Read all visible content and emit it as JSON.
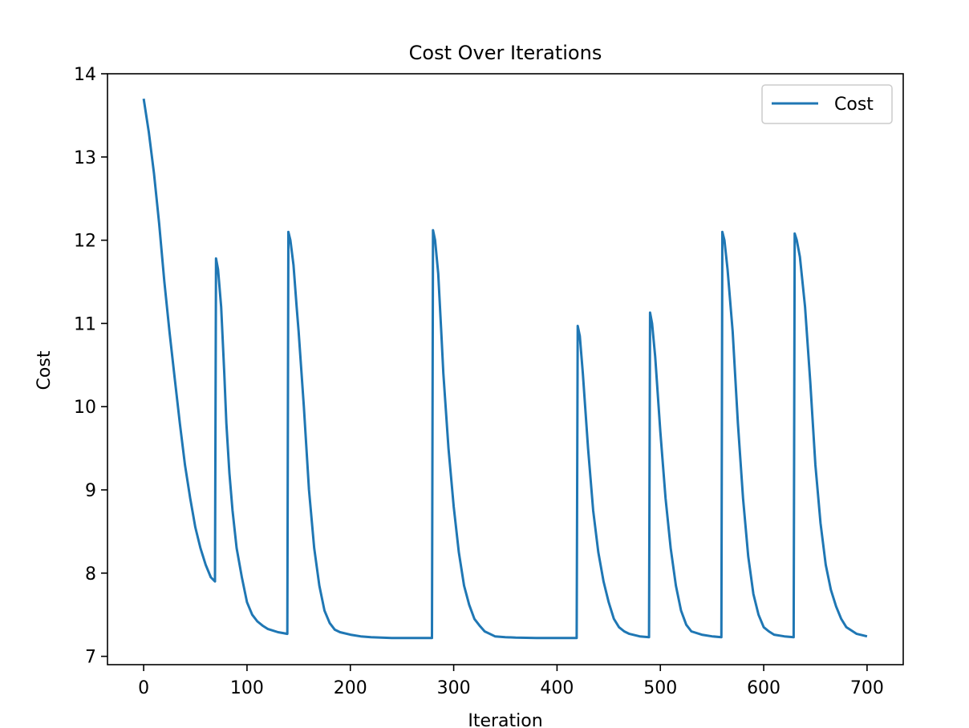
{
  "chart_data": {
    "type": "line",
    "title": "Cost Over Iterations",
    "xlabel": "Iteration",
    "ylabel": "Cost",
    "xlim": [
      -35,
      735
    ],
    "ylim": [
      6.9,
      14.0
    ],
    "x_ticks": [
      0,
      100,
      200,
      300,
      400,
      500,
      600,
      700
    ],
    "y_ticks": [
      7,
      8,
      9,
      10,
      11,
      12,
      13,
      14
    ],
    "grid": false,
    "legend": {
      "position": "upper-right",
      "entries": [
        "Cost"
      ]
    },
    "series": [
      {
        "name": "Cost",
        "color": "#1f77b4",
        "x": [
          0,
          5,
          10,
          15,
          20,
          25,
          30,
          35,
          40,
          45,
          50,
          55,
          60,
          65,
          69,
          70,
          72,
          75,
          78,
          80,
          83,
          86,
          90,
          95,
          100,
          105,
          110,
          115,
          120,
          125,
          130,
          135,
          139,
          140,
          142,
          145,
          148,
          150,
          155,
          160,
          165,
          170,
          175,
          180,
          185,
          190,
          200,
          210,
          220,
          230,
          240,
          250,
          260,
          270,
          279,
          280,
          282,
          285,
          288,
          290,
          295,
          300,
          305,
          310,
          315,
          320,
          325,
          330,
          340,
          350,
          360,
          380,
          400,
          419,
          420,
          422,
          425,
          430,
          435,
          440,
          445,
          450,
          455,
          460,
          465,
          470,
          480,
          489,
          490,
          492,
          495,
          500,
          505,
          510,
          515,
          520,
          525,
          530,
          540,
          550,
          559,
          560,
          562,
          565,
          570,
          575,
          580,
          585,
          590,
          595,
          600,
          605,
          610,
          620,
          629,
          630,
          632,
          635,
          640,
          645,
          650,
          655,
          660,
          665,
          670,
          675,
          680,
          690,
          700
        ],
        "values": [
          13.7,
          13.3,
          12.8,
          12.2,
          11.5,
          10.9,
          10.35,
          9.8,
          9.3,
          8.9,
          8.55,
          8.3,
          8.1,
          7.95,
          7.9,
          11.78,
          11.65,
          11.2,
          10.4,
          9.8,
          9.2,
          8.75,
          8.3,
          7.95,
          7.65,
          7.5,
          7.42,
          7.37,
          7.33,
          7.31,
          7.29,
          7.28,
          7.27,
          12.1,
          12.0,
          11.7,
          11.2,
          10.9,
          10.0,
          9.0,
          8.3,
          7.85,
          7.55,
          7.4,
          7.32,
          7.29,
          7.26,
          7.24,
          7.23,
          7.225,
          7.22,
          7.22,
          7.22,
          7.22,
          7.22,
          12.12,
          12.0,
          11.6,
          10.9,
          10.4,
          9.5,
          8.8,
          8.25,
          7.85,
          7.62,
          7.45,
          7.37,
          7.3,
          7.24,
          7.23,
          7.225,
          7.22,
          7.22,
          7.22,
          10.97,
          10.85,
          10.4,
          9.5,
          8.75,
          8.25,
          7.9,
          7.65,
          7.45,
          7.35,
          7.3,
          7.27,
          7.24,
          7.23,
          11.13,
          11.0,
          10.6,
          9.7,
          8.9,
          8.3,
          7.85,
          7.55,
          7.38,
          7.3,
          7.26,
          7.24,
          7.23,
          12.1,
          12.0,
          11.65,
          10.9,
          9.8,
          8.9,
          8.2,
          7.75,
          7.5,
          7.35,
          7.3,
          7.26,
          7.24,
          7.23,
          12.08,
          12.0,
          11.8,
          11.2,
          10.3,
          9.3,
          8.6,
          8.1,
          7.8,
          7.6,
          7.45,
          7.35,
          7.27,
          7.24
        ]
      }
    ]
  }
}
